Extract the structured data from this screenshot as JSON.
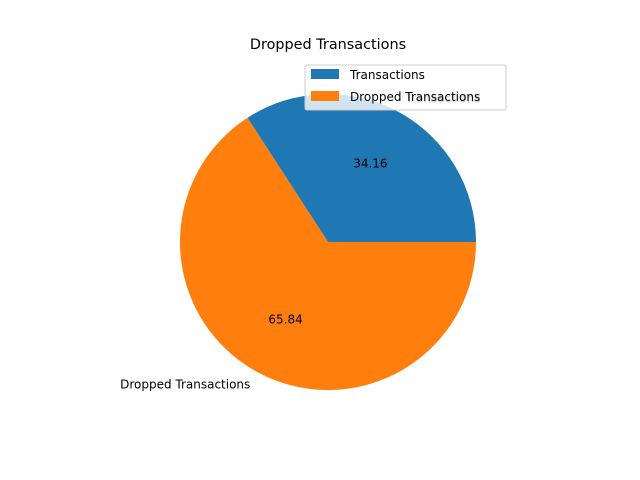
{
  "chart_data": {
    "type": "pie",
    "title": "Dropped Transactions",
    "slices": [
      {
        "label": "Transactions",
        "value": 34.16,
        "value_label": "34.16",
        "color": "#1f77b4"
      },
      {
        "label": "Dropped Transactions",
        "value": 65.84,
        "value_label": "65.84",
        "color": "#ff7f0e"
      }
    ],
    "start_angle_deg": 0,
    "direction": "counterclockwise",
    "legend": {
      "position": "top-right",
      "entries": [
        "Transactions",
        "Dropped Transactions"
      ]
    }
  }
}
